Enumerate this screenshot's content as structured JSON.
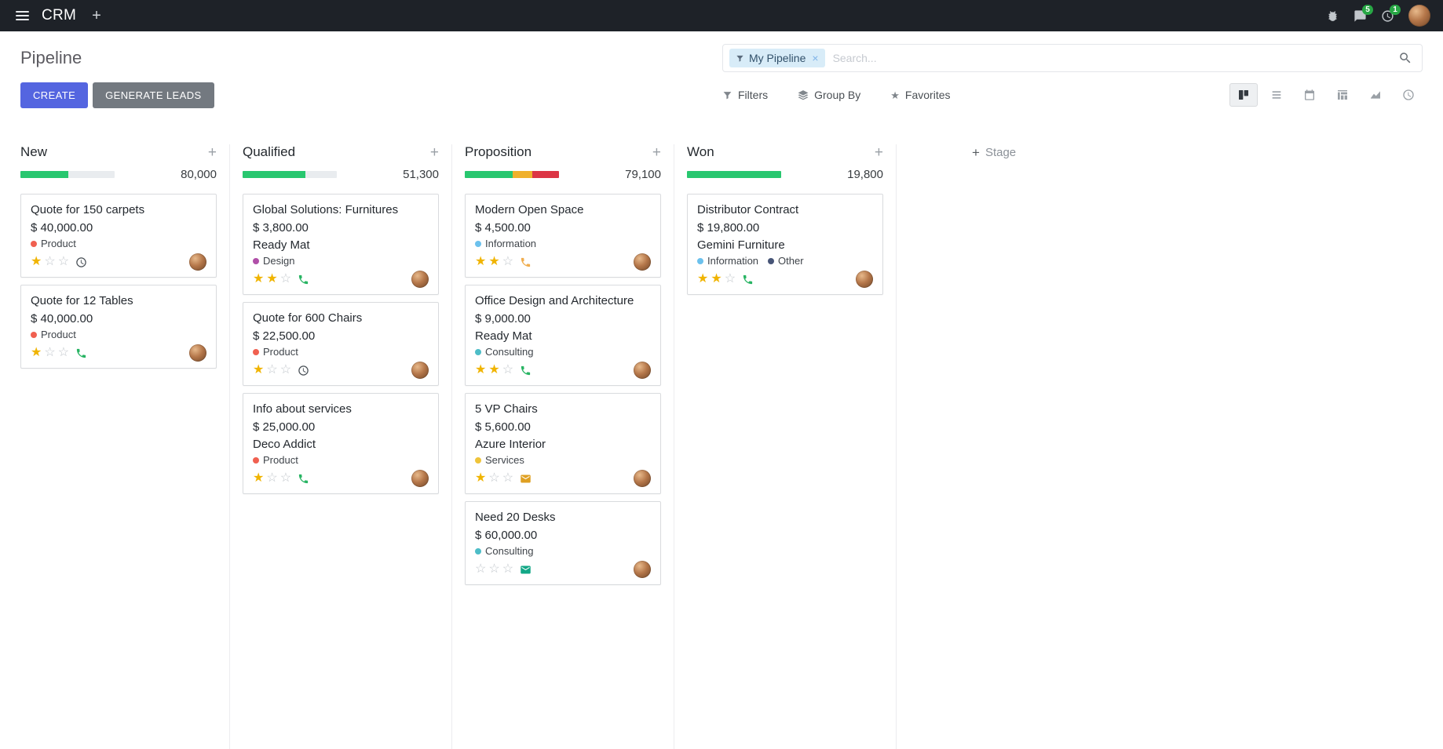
{
  "icons": {
    "plus": "+",
    "close": "×",
    "star": "★"
  },
  "colors": {
    "primary": "#5465e0",
    "secondary_button": "#737980",
    "navbar_bg": "#1e2228",
    "badge_green": "#28a745",
    "progress_green": "#28c76f",
    "progress_yellow": "#f0b12c",
    "progress_red": "#dc3545"
  },
  "navbar": {
    "app_name": "CRM",
    "messages_badge": "5",
    "activities_badge": "1"
  },
  "control_panel": {
    "title": "Pipeline",
    "search": {
      "facet_label": "My Pipeline",
      "placeholder": "Search..."
    },
    "create_label": "CREATE",
    "generate_leads_label": "GENERATE LEADS",
    "filters_label": "Filters",
    "group_by_label": "Group By",
    "favorites_label": "Favorites",
    "view_switcher": {
      "active": "kanban",
      "views": [
        "kanban",
        "list",
        "calendar",
        "pivot",
        "graph",
        "activity"
      ]
    }
  },
  "kanban": {
    "add_stage_label": "Stage",
    "columns": [
      {
        "name": "New",
        "total": "80,000",
        "progress": {
          "segments": [
            {
              "color": "#28c76f",
              "width": "51%"
            }
          ]
        },
        "cards": [
          {
            "title": "Quote for 150 carpets",
            "amount": "$ 40,000.00",
            "tags": [
              {
                "label": "Product",
                "color": "#f06050"
              }
            ],
            "stars": 1,
            "activity": {
              "icon": "clock-icon",
              "color": "#495057"
            }
          },
          {
            "title": "Quote for 12 Tables",
            "amount": "$ 40,000.00",
            "tags": [
              {
                "label": "Product",
                "color": "#f06050"
              }
            ],
            "stars": 1,
            "activity": {
              "icon": "phone-icon",
              "color": "#28b463"
            }
          }
        ]
      },
      {
        "name": "Qualified",
        "total": "51,300",
        "progress": {
          "segments": [
            {
              "color": "#28c76f",
              "width": "67%"
            }
          ]
        },
        "cards": [
          {
            "title": "Global Solutions: Furnitures",
            "amount": "$ 3,800.00",
            "partner": "Ready Mat",
            "tags": [
              {
                "label": "Design",
                "color": "#b04fa8"
              }
            ],
            "stars": 2,
            "activity": {
              "icon": "phone-icon",
              "color": "#28b463"
            }
          },
          {
            "title": "Quote for 600 Chairs",
            "amount": "$ 22,500.00",
            "tags": [
              {
                "label": "Product",
                "color": "#f06050"
              }
            ],
            "stars": 1,
            "activity": {
              "icon": "clock-icon",
              "color": "#495057"
            }
          },
          {
            "title": "Info about services",
            "amount": "$ 25,000.00",
            "partner": "Deco Addict",
            "tags": [
              {
                "label": "Product",
                "color": "#f06050"
              }
            ],
            "stars": 1,
            "activity": {
              "icon": "phone-icon",
              "color": "#28b463"
            }
          }
        ]
      },
      {
        "name": "Proposition",
        "total": "79,100",
        "progress": {
          "segments": [
            {
              "color": "#28c76f",
              "width": "51%"
            },
            {
              "color": "#f0b12c",
              "width": "21%"
            },
            {
              "color": "#dc3545",
              "width": "28%"
            }
          ]
        },
        "cards": [
          {
            "title": "Modern Open Space",
            "amount": "$ 4,500.00",
            "tags": [
              {
                "label": "Information",
                "color": "#6cc1ed"
              }
            ],
            "stars": 2,
            "activity": {
              "icon": "phone-icon",
              "color": "#f0ad4e"
            }
          },
          {
            "title": "Office Design and Architecture",
            "amount": "$ 9,000.00",
            "partner": "Ready Mat",
            "tags": [
              {
                "label": "Consulting",
                "color": "#4dbdc7"
              }
            ],
            "stars": 2,
            "activity": {
              "icon": "phone-icon",
              "color": "#28b463"
            }
          },
          {
            "title": "5 VP Chairs",
            "amount": "$ 5,600.00",
            "partner": "Azure Interior",
            "tags": [
              {
                "label": "Services",
                "color": "#efc43a"
              }
            ],
            "stars": 1,
            "activity": {
              "icon": "mail-icon",
              "color": "#dfa022"
            }
          },
          {
            "title": "Need 20 Desks",
            "amount": "$ 60,000.00",
            "tags": [
              {
                "label": "Consulting",
                "color": "#4dbdc7"
              }
            ],
            "stars": 0,
            "activity": {
              "icon": "mail-icon",
              "color": "#12a786"
            }
          }
        ]
      },
      {
        "name": "Won",
        "total": "19,800",
        "progress": {
          "segments": [
            {
              "color": "#28c76f",
              "width": "100%"
            }
          ]
        },
        "cards": [
          {
            "title": "Distributor Contract",
            "amount": "$ 19,800.00",
            "partner": "Gemini Furniture",
            "tags": [
              {
                "label": "Information",
                "color": "#6cc1ed"
              },
              {
                "label": "Other",
                "color": "#475577"
              }
            ],
            "stars": 2,
            "activity": {
              "icon": "phone-icon",
              "color": "#28b463"
            }
          }
        ]
      }
    ]
  }
}
